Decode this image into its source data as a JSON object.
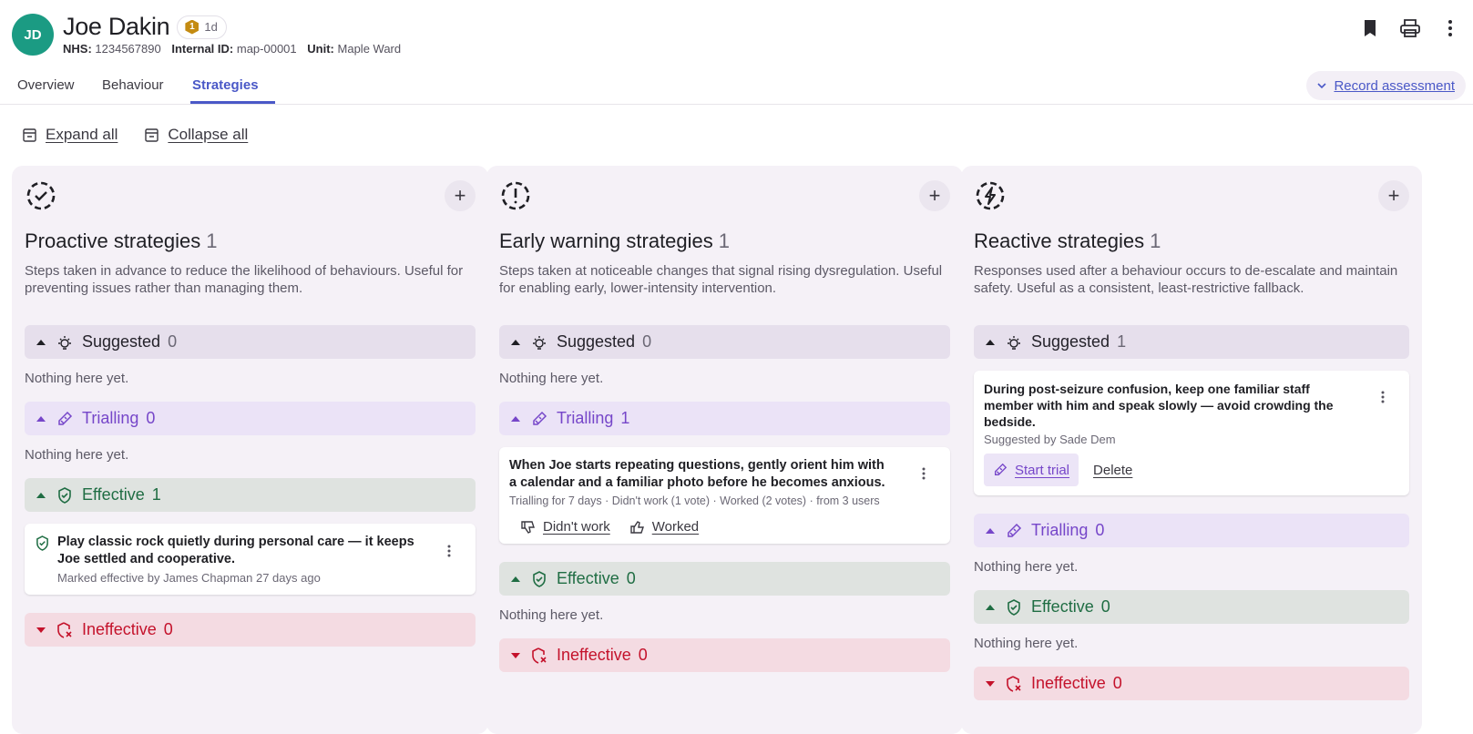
{
  "patient": {
    "initials": "JD",
    "name": "Joe Dakin",
    "badge_level": "1",
    "badge_text": "1d",
    "nhs_label": "NHS:",
    "nhs_value": "1234567890",
    "internal_label": "Internal ID:",
    "internal_value": "map-00001",
    "unit_label": "Unit:",
    "unit_value": "Maple Ward"
  },
  "header_icons": [
    "bookmark-icon",
    "print-icon",
    "more-vertical-icon"
  ],
  "tabs": [
    {
      "label": "Overview",
      "active": false
    },
    {
      "label": "Behaviour",
      "active": false
    },
    {
      "label": "Strategies",
      "active": true
    }
  ],
  "record_assessment": "Record assessment",
  "toolbar": {
    "expand_all": "Expand all",
    "collapse_all": "Collapse all"
  },
  "colors": {
    "accent": "#4a58c7",
    "avatar": "#1b9b83",
    "trialling": "#7646c9",
    "effective": "#1f6d43",
    "ineffective": "#c4122b",
    "column_bg": "#f5f1f7"
  },
  "columns": [
    {
      "icon": "check-circle-dashed-icon",
      "title": "Proactive strategies",
      "count": "1",
      "description": "Steps taken in advance to reduce the likelihood of behaviours. Useful for preventing issues rather than managing them.",
      "sections": {
        "suggested": {
          "label": "Suggested",
          "count": "0",
          "empty": "Nothing here yet."
        },
        "trialling": {
          "label": "Trialling",
          "count": "0",
          "empty": "Nothing here yet."
        },
        "effective": {
          "label": "Effective",
          "count": "1",
          "card": {
            "title": "Play classic rock quietly during personal care — it keeps Joe settled and cooperative.",
            "meta": "Marked effective by James Chapman 27 days ago"
          }
        },
        "ineffective": {
          "label": "Ineffective",
          "count": "0"
        }
      }
    },
    {
      "icon": "alert-circle-dashed-icon",
      "title": "Early warning strategies",
      "count": "1",
      "description": "Steps taken at noticeable changes that signal rising dysregulation. Useful for enabling early, lower-intensity intervention.",
      "sections": {
        "suggested": {
          "label": "Suggested",
          "count": "0",
          "empty": "Nothing here yet."
        },
        "trialling": {
          "label": "Trialling",
          "count": "1",
          "card": {
            "title": "When Joe starts repeating questions, gently orient him with a calendar and a familiar photo before he becomes anxious.",
            "meta": "Trialling for 7 days · Didn't work (1 vote) · Worked (2 votes) · from 3 users",
            "didnt_work": "Didn't work",
            "worked": "Worked"
          }
        },
        "effective": {
          "label": "Effective",
          "count": "0",
          "empty": "Nothing here yet."
        },
        "ineffective": {
          "label": "Ineffective",
          "count": "0"
        }
      }
    },
    {
      "icon": "bolt-circle-dashed-icon",
      "title": "Reactive strategies",
      "count": "1",
      "description": "Responses used after a behaviour occurs to de-escalate and maintain safety. Useful as a consistent, least-restrictive fallback.",
      "sections": {
        "suggested": {
          "label": "Suggested",
          "count": "1",
          "card": {
            "title": "During post-seizure confusion, keep one familiar staff member with him and speak slowly — avoid crowding the bedside.",
            "meta": "Suggested by Sade Dem",
            "start_trial": "Start trial",
            "delete": "Delete"
          }
        },
        "trialling": {
          "label": "Trialling",
          "count": "0",
          "empty": "Nothing here yet."
        },
        "effective": {
          "label": "Effective",
          "count": "0",
          "empty": "Nothing here yet."
        },
        "ineffective": {
          "label": "Ineffective",
          "count": "0"
        }
      }
    }
  ]
}
